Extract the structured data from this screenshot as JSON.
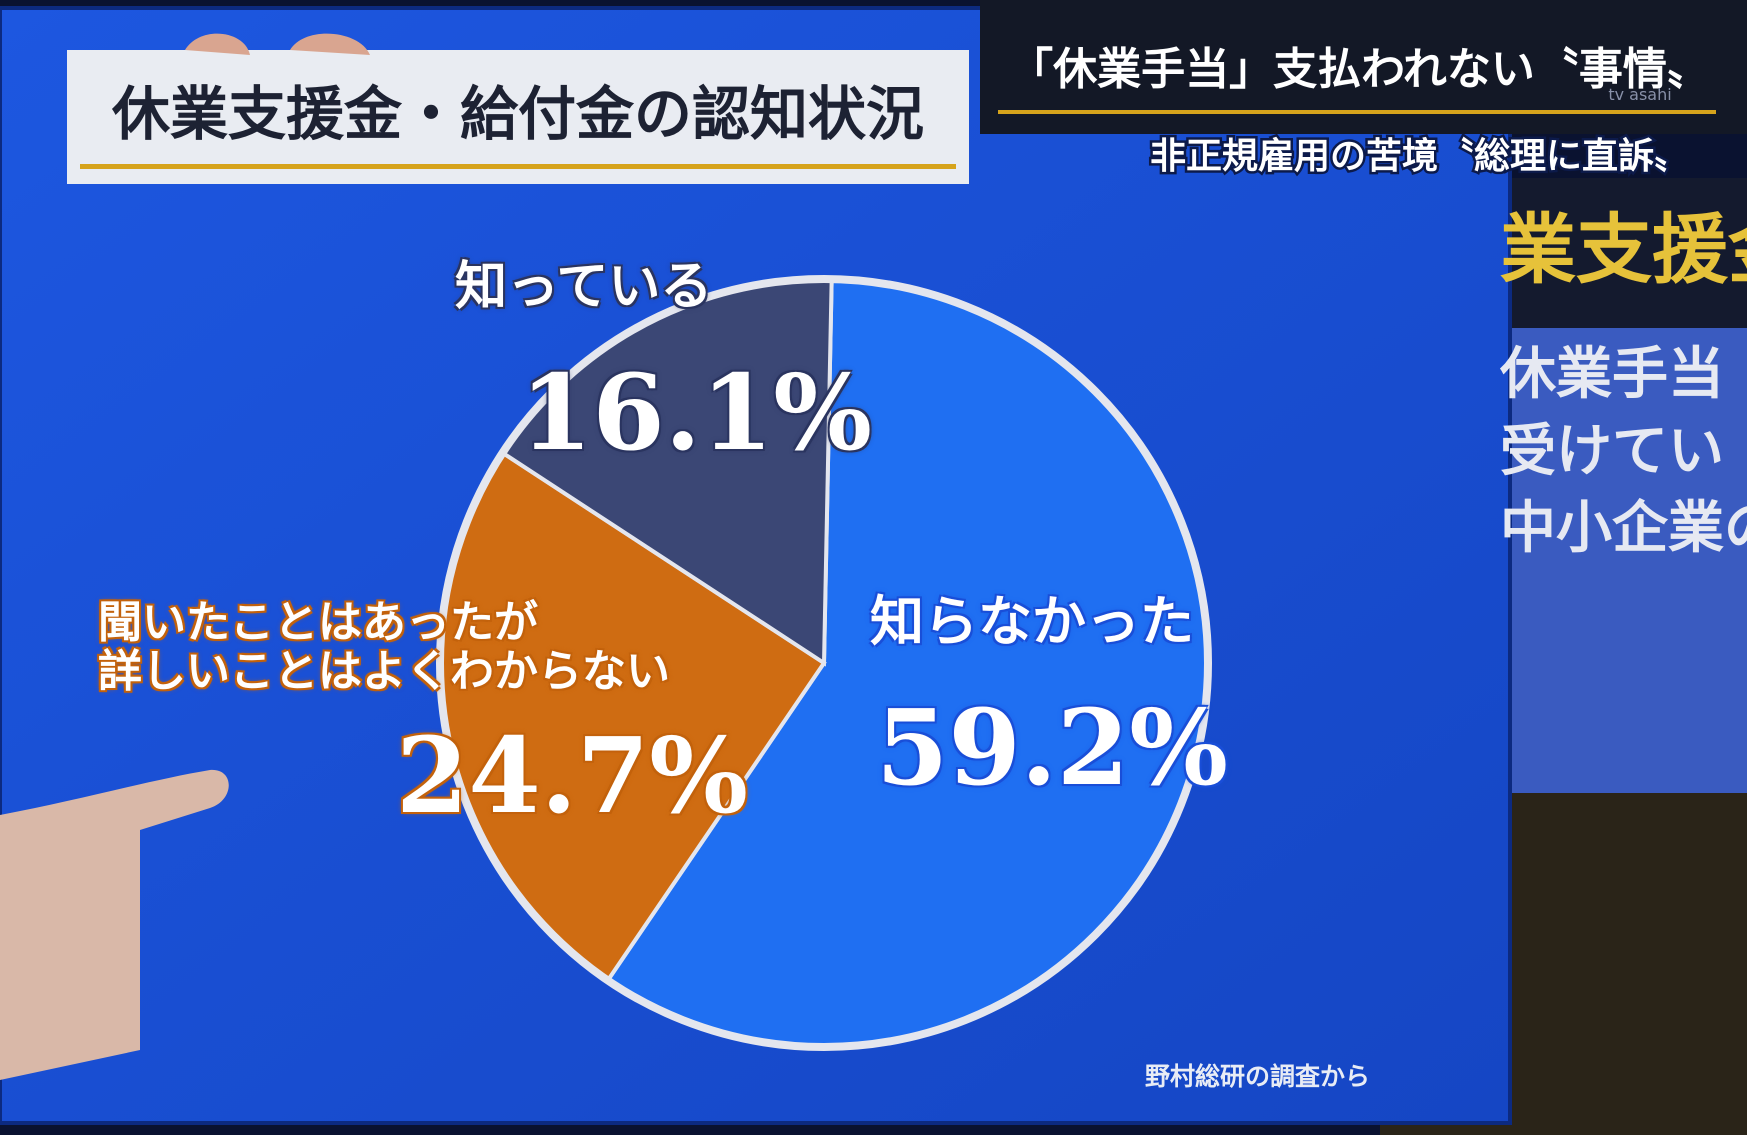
{
  "chart_data": {
    "type": "pie",
    "title": "休業支援金・給付金の認知状況",
    "categories": [
      "知らなかった",
      "聞いたことはあったが\n詳しいことはよくわからない",
      "知っている"
    ],
    "values": [
      59.2,
      24.7,
      16.1
    ],
    "value_labels": [
      "59.2%",
      "24.7%",
      "16.1%"
    ],
    "colors": [
      "#1f6ff2",
      "#cf6c12",
      "#3b4775"
    ],
    "source": "野村総研の調査から"
  },
  "broadcast": {
    "headline": "「休業手当」支払われない〝事情〟",
    "subheadline": "非正規雇用の苦境〝総理に直訴〟",
    "watermark": "tv asahi",
    "side_panel": {
      "heading": "業支援金",
      "lines": [
        "休業手当",
        "受けてい",
        "中小企業の"
      ]
    }
  }
}
